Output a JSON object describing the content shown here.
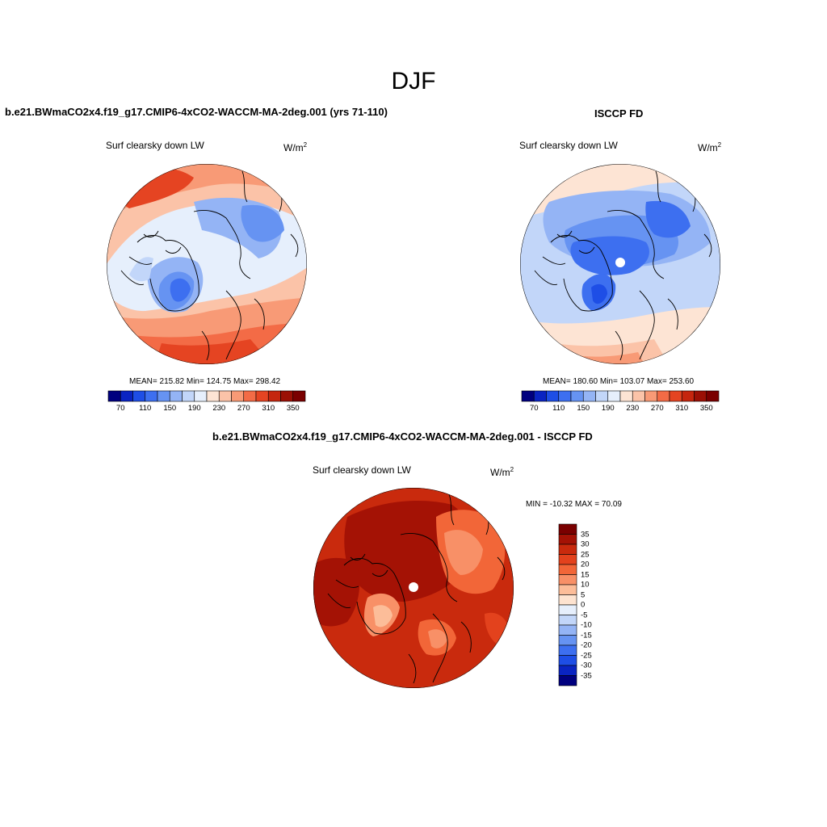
{
  "figure_title": "DJF",
  "panels": [
    {
      "title": "b.e21.BWmaCO2x4.f19_g17.CMIP6-4xCO2-WACCM-MA-2deg.001 (yrs 71-110)",
      "variable": "Surf clearsky down LW",
      "units": "W/m",
      "units_exp": "2",
      "stats": "MEAN= 215.82  Min= 124.75  Max= 298.42",
      "colorbar_ticks": [
        "70",
        "110",
        "150",
        "190",
        "230",
        "270",
        "310",
        "350"
      ]
    },
    {
      "title": "ISCCP FD",
      "variable": "Surf clearsky down LW",
      "units": "W/m",
      "units_exp": "2",
      "stats": "MEAN= 180.60  Min= 103.07  Max= 253.60",
      "colorbar_ticks": [
        "70",
        "110",
        "150",
        "190",
        "230",
        "270",
        "310",
        "350"
      ]
    },
    {
      "title": "b.e21.BWmaCO2x4.f19_g17.CMIP6-4xCO2-WACCM-MA-2deg.001 - ISCCP FD",
      "variable": "Surf clearsky down LW",
      "units": "W/m",
      "units_exp": "2",
      "stats": "MIN = -10.32 MAX =  70.09",
      "colorbar_ticks": [
        "35",
        "30",
        "25",
        "20",
        "15",
        "10",
        "5",
        "0",
        "-5",
        "-10",
        "-15",
        "-20",
        "-25",
        "-30",
        "-35"
      ]
    }
  ],
  "colors": {
    "abs_scale": [
      "#00007f",
      "#0a24c2",
      "#1e4ee6",
      "#3d6ff0",
      "#6693f2",
      "#94b4f5",
      "#c2d6f9",
      "#e6effc",
      "#fde4d4",
      "#fbc3a8",
      "#f89a76",
      "#f36b46",
      "#e54422",
      "#c5260e",
      "#9b1005",
      "#7a0000"
    ],
    "diff_scale": [
      "#7a0000",
      "#a41205",
      "#c92a0d",
      "#e3421d",
      "#f26638",
      "#f89067",
      "#fcbd99",
      "#fde3d0",
      "#e6effc",
      "#c2d6f9",
      "#94b4f5",
      "#6693f2",
      "#3d6ff0",
      "#1e4ee6",
      "#0a24c2",
      "#00007f"
    ]
  }
}
